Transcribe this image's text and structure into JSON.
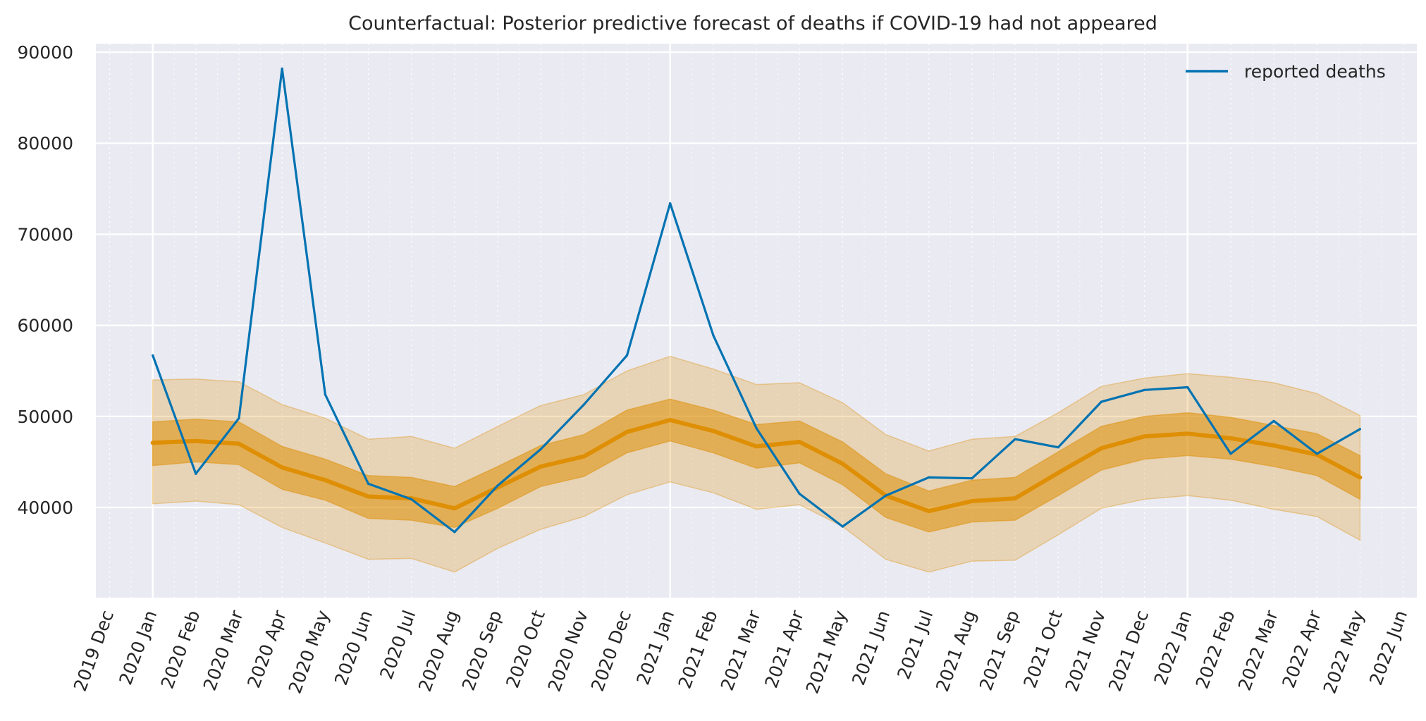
{
  "chart_data": {
    "type": "line",
    "title": "Counterfactual: Posterior predictive forecast of deaths if COVID-19 had not appeared",
    "xlabel": "",
    "ylabel": "",
    "x": [
      "2020 Jan",
      "2020 Feb",
      "2020 Mar",
      "2020 Apr",
      "2020 May",
      "2020 Jun",
      "2020 Jul",
      "2020 Aug",
      "2020 Sep",
      "2020 Oct",
      "2020 Nov",
      "2020 Dec",
      "2021 Jan",
      "2021 Feb",
      "2021 Mar",
      "2021 Apr",
      "2021 May",
      "2021 Jun",
      "2021 Jul",
      "2021 Aug",
      "2021 Sep",
      "2021 Oct",
      "2021 Nov",
      "2021 Dec",
      "2022 Jan",
      "2022 Feb",
      "2022 Mar",
      "2022 Apr",
      "2022 May"
    ],
    "x_ticks": [
      "2019 Dec",
      "2020 Jan",
      "2020 Feb",
      "2020 Mar",
      "2020 Apr",
      "2020 May",
      "2020 Jun",
      "2020 Jul",
      "2020 Aug",
      "2020 Sep",
      "2020 Oct",
      "2020 Nov",
      "2020 Dec",
      "2021 Jan",
      "2021 Feb",
      "2021 Mar",
      "2021 Apr",
      "2021 May",
      "2021 Jun",
      "2021 Jul",
      "2021 Aug",
      "2021 Sep",
      "2021 Oct",
      "2021 Nov",
      "2021 Dec",
      "2022 Jan",
      "2022 Feb",
      "2022 Mar",
      "2022 Apr",
      "2022 May",
      "2022 Jun"
    ],
    "y_ticks": [
      40000,
      50000,
      60000,
      70000,
      80000,
      90000
    ],
    "ylim": [
      30500,
      91000
    ],
    "grid": true,
    "legend_position": "top-right",
    "series": [
      {
        "name": "reported deaths",
        "color": "#0173b2",
        "values": [
          56700,
          43700,
          49800,
          88200,
          52400,
          42600,
          40900,
          37300,
          42400,
          46400,
          51300,
          56700,
          73400,
          58900,
          48700,
          41500,
          37900,
          41300,
          43300,
          43200,
          47500,
          46600,
          51600,
          52900,
          53200,
          45900,
          49500,
          45900,
          48600
        ]
      }
    ],
    "forecast": {
      "color": "#de8f05",
      "median": [
        47100,
        47300,
        47000,
        44400,
        43000,
        41200,
        41000,
        39900,
        42200,
        44500,
        45600,
        48300,
        49600,
        48400,
        46700,
        47200,
        44800,
        41300,
        39600,
        40700,
        41000,
        43800,
        46500,
        47800,
        48100,
        47600,
        46800,
        45800,
        43300
      ],
      "inner_low": [
        44600,
        45000,
        44700,
        42000,
        40800,
        38800,
        38600,
        37800,
        39900,
        42300,
        43400,
        46000,
        47300,
        46000,
        44300,
        44900,
        42500,
        38900,
        37300,
        38400,
        38600,
        41300,
        44100,
        45300,
        45700,
        45300,
        44500,
        43500,
        40900
      ],
      "inner_high": [
        49400,
        49700,
        49400,
        46700,
        45300,
        43500,
        43300,
        42300,
        44500,
        46800,
        48000,
        50700,
        51900,
        50700,
        49100,
        49500,
        47200,
        43700,
        41800,
        43000,
        43300,
        46100,
        48900,
        50000,
        50400,
        49900,
        49000,
        48100,
        45700
      ],
      "outer_low": [
        40400,
        40700,
        40300,
        37800,
        36100,
        34300,
        34400,
        32900,
        35500,
        37600,
        39000,
        41400,
        42800,
        41600,
        39800,
        40300,
        37900,
        34300,
        32900,
        34100,
        34200,
        37000,
        39900,
        40900,
        41300,
        40800,
        39800,
        39000,
        36400
      ],
      "outer_high": [
        54000,
        54100,
        53800,
        51300,
        49800,
        47500,
        47800,
        46500,
        48900,
        51200,
        52400,
        55000,
        56600,
        55200,
        53500,
        53700,
        51500,
        48000,
        46200,
        47500,
        47800,
        50400,
        53300,
        54200,
        54700,
        54300,
        53700,
        52500,
        50100
      ]
    }
  }
}
